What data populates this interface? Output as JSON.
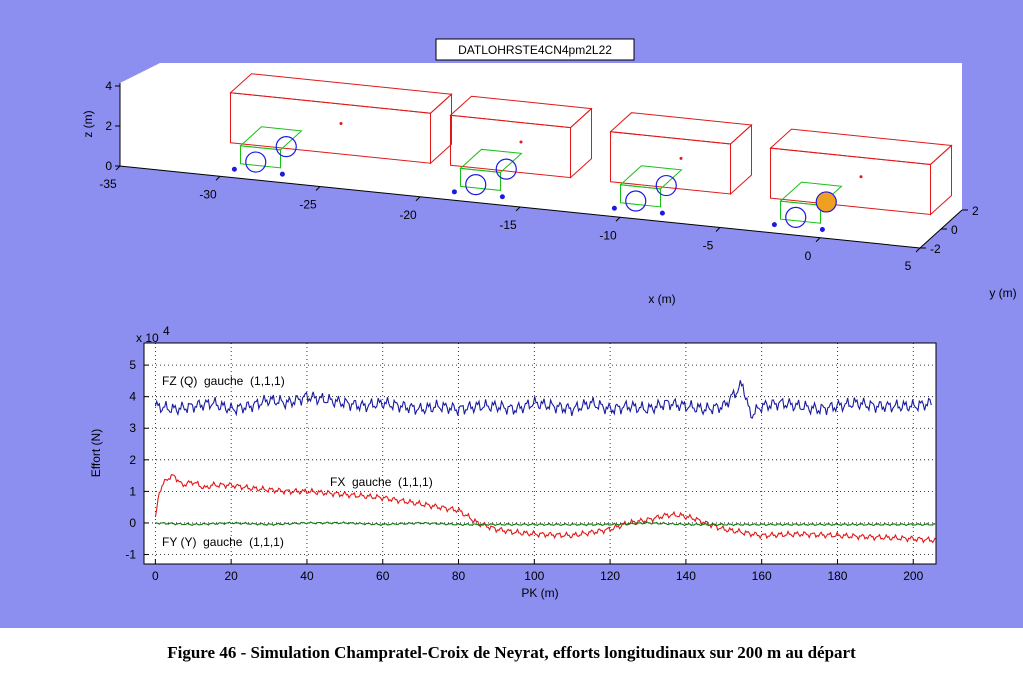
{
  "figure_caption": "Figure 46 - Simulation Champratel-Croix de Neyrat, efforts longitudinaux sur 200 m au départ",
  "colors": {
    "background": "#8c8ef0",
    "fz": "#1a1aa0",
    "fx": "#e01818",
    "fy": "#107810",
    "car_body": "#e01818",
    "bogie_frame": "#18c018",
    "wheel": "#1a1ae0",
    "marked_wheel": "#f0a020"
  },
  "chart_data": [
    {
      "type": "3d-schematic",
      "title": "DATLOHRSTE4CN4pm2L22",
      "xlabel": "x (m)",
      "ylabel": "y (m)",
      "zlabel": "z (m)",
      "x_ticks": [
        "-35",
        "-30",
        "-25",
        "-20",
        "-15",
        "-10",
        "-5",
        "0",
        "5"
      ],
      "y_ticks": [
        "2",
        "0",
        "-2"
      ],
      "z_ticks": [
        "4",
        "2",
        "0"
      ],
      "xlim": [
        -35,
        5
      ],
      "ylim": [
        -2,
        2
      ],
      "zlim": [
        0,
        4
      ],
      "cars": [
        {
          "x_start": -30,
          "x_end": -20
        },
        {
          "x_start": -19,
          "x_end": -13
        },
        {
          "x_start": -11,
          "x_end": -5
        },
        {
          "x_start": -3,
          "x_end": 5
        }
      ]
    },
    {
      "type": "line",
      "xlabel": "PK (m)",
      "ylabel": "Effort (N)",
      "y_multiplier": "x 10",
      "y_exponent": "4",
      "xlim": [
        -3,
        206
      ],
      "ylim": [
        -1.3,
        5.7
      ],
      "x_ticks": [
        0,
        20,
        40,
        60,
        80,
        100,
        120,
        140,
        160,
        180,
        200
      ],
      "y_ticks": [
        -1,
        0,
        1,
        2,
        3,
        4,
        5
      ],
      "grid": true,
      "series": [
        {
          "name": "FZ (Q)  gauche  (1,1,1)",
          "color": "#1a1aa0",
          "x": [
            0,
            5,
            10,
            15,
            20,
            25,
            30,
            35,
            40,
            45,
            50,
            55,
            60,
            65,
            70,
            75,
            80,
            85,
            90,
            95,
            100,
            105,
            110,
            115,
            120,
            125,
            130,
            135,
            140,
            145,
            150,
            155,
            157,
            160,
            165,
            170,
            175,
            180,
            185,
            190,
            195,
            200,
            205
          ],
          "values": [
            3.7,
            3.6,
            3.7,
            3.8,
            3.6,
            3.7,
            3.9,
            3.8,
            4.0,
            3.9,
            3.8,
            3.7,
            3.8,
            3.7,
            3.6,
            3.7,
            3.6,
            3.7,
            3.7,
            3.6,
            3.8,
            3.7,
            3.6,
            3.8,
            3.6,
            3.7,
            3.6,
            3.8,
            3.7,
            3.6,
            3.7,
            4.4,
            3.4,
            3.7,
            3.8,
            3.7,
            3.6,
            3.7,
            3.8,
            3.7,
            3.7,
            3.7,
            3.8
          ]
        },
        {
          "name": "FX  gauche  (1,1,1)",
          "color": "#e01818",
          "x": [
            0,
            1,
            3,
            5,
            7,
            10,
            13,
            15,
            20,
            25,
            30,
            35,
            40,
            45,
            50,
            55,
            60,
            65,
            70,
            75,
            80,
            85,
            90,
            95,
            100,
            110,
            120,
            125,
            130,
            135,
            138,
            142,
            145,
            150,
            155,
            160,
            170,
            180,
            190,
            200,
            206
          ],
          "values": [
            0.1,
            1.0,
            1.4,
            1.5,
            1.2,
            1.3,
            1.1,
            1.2,
            1.2,
            1.1,
            1.05,
            1.0,
            1.0,
            0.95,
            0.9,
            0.85,
            0.8,
            0.7,
            0.6,
            0.5,
            0.4,
            0.0,
            -0.2,
            -0.3,
            -0.35,
            -0.4,
            -0.2,
            0.0,
            0.1,
            0.25,
            0.25,
            0.15,
            0.0,
            -0.2,
            -0.3,
            -0.4,
            -0.35,
            -0.4,
            -0.45,
            -0.5,
            -0.55
          ]
        },
        {
          "name": "FY (Y)  gauche  (1,1,1)",
          "color": "#107810",
          "x": [
            0,
            10,
            20,
            30,
            40,
            50,
            60,
            70,
            80,
            90,
            100,
            110,
            120,
            130,
            140,
            150,
            160,
            170,
            180,
            190,
            200,
            206
          ],
          "values": [
            0.0,
            -0.05,
            0.0,
            -0.05,
            0.0,
            0.0,
            -0.05,
            0.0,
            -0.05,
            -0.05,
            -0.05,
            -0.05,
            -0.05,
            0.0,
            -0.05,
            -0.05,
            -0.05,
            -0.05,
            -0.05,
            -0.05,
            -0.05,
            -0.05
          ]
        }
      ]
    }
  ]
}
